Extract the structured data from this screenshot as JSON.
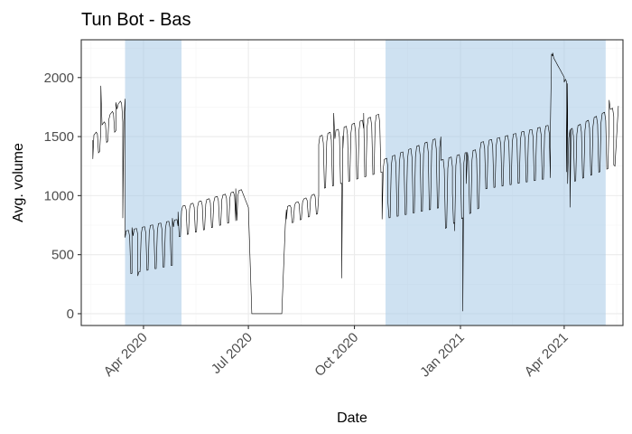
{
  "chart_data": {
    "type": "line",
    "title": "Tun Bot - Bas",
    "xlabel": "Date",
    "ylabel": "Avg. volume",
    "x_axis": {
      "type": "date",
      "range": [
        "2020-02-07",
        "2021-05-22"
      ],
      "ticks": [
        {
          "date": "2020-04-01",
          "label": "Apr 2020"
        },
        {
          "date": "2020-07-01",
          "label": "Jul 2020"
        },
        {
          "date": "2020-10-01",
          "label": "Oct 2020"
        },
        {
          "date": "2021-01-01",
          "label": "Jan 2021"
        },
        {
          "date": "2021-04-01",
          "label": "Apr 2021"
        }
      ]
    },
    "y_axis": {
      "range": [
        -100,
        2320
      ],
      "ticks": [
        0,
        500,
        1000,
        1500,
        2000
      ]
    },
    "grid": true,
    "legend": "none",
    "colors": {
      "line": "#000000",
      "band": "#a6c8e6",
      "grid": "#ebebeb",
      "border": "#333333"
    },
    "shaded_periods": [
      {
        "start": "2020-03-16",
        "end": "2020-05-04"
      },
      {
        "start": "2020-10-28",
        "end": "2021-05-07"
      }
    ],
    "segments": [
      {
        "start": "2020-02-17",
        "end": "2020-03-16",
        "weekday_high": [
          1500,
          1850
        ],
        "weekend_low": [
          1300,
          1650
        ]
      },
      {
        "start": "2020-03-16",
        "end": "2020-05-01",
        "weekday_high": [
          700,
          800
        ],
        "weekend_low": [
          330,
          420
        ]
      },
      {
        "start": "2020-05-01",
        "end": "2020-06-25",
        "weekday_high": [
          900,
          1050
        ],
        "weekend_low": [
          650,
          800
        ]
      },
      {
        "start": "2020-07-05",
        "end": "2020-07-30",
        "constant": 0
      },
      {
        "start": "2020-08-02",
        "end": "2020-08-31",
        "weekday_high": [
          900,
          1030
        ],
        "weekend_low": [
          750,
          850
        ]
      },
      {
        "start": "2020-08-31",
        "end": "2020-10-25",
        "weekday_high": [
          1500,
          1700
        ],
        "weekend_low": [
          1050,
          1200
        ]
      },
      {
        "start": "2020-10-25",
        "end": "2020-12-15",
        "weekday_high": [
          1300,
          1500
        ],
        "weekend_low": [
          800,
          900
        ]
      },
      {
        "start": "2020-12-15",
        "end": "2021-01-18",
        "weekday_high": [
          1300,
          1400
        ],
        "weekend_low": [
          700,
          900
        ]
      },
      {
        "start": "2021-01-18",
        "end": "2021-03-20",
        "weekday_high": [
          1450,
          1600
        ],
        "weekend_low": [
          1050,
          1150
        ]
      },
      {
        "start": "2021-03-21",
        "end": "2021-04-04",
        "weekday_high": [
          2200,
          1950
        ],
        "weekend_low": [
          2200,
          1950
        ]
      },
      {
        "start": "2021-04-04",
        "end": "2021-05-15",
        "weekday_high": [
          1550,
          1750
        ],
        "weekend_low": [
          1100,
          1250
        ]
      }
    ],
    "points": [
      {
        "x": "2020-02-17",
        "y": 1310
      },
      {
        "x": "2020-02-24",
        "y": 1930
      },
      {
        "x": "2020-03-08",
        "y": 1790
      },
      {
        "x": "2020-03-14",
        "y": 810
      },
      {
        "x": "2020-03-22",
        "y": 730
      },
      {
        "x": "2020-03-27",
        "y": 320
      },
      {
        "x": "2020-04-26",
        "y": 810
      },
      {
        "x": "2020-06-20",
        "y": 1060
      },
      {
        "x": "2020-07-01",
        "y": 900
      },
      {
        "x": "2020-07-04",
        "y": 0
      },
      {
        "x": "2020-07-30",
        "y": 0
      },
      {
        "x": "2020-08-03",
        "y": 800
      },
      {
        "x": "2020-09-13",
        "y": 1700
      },
      {
        "x": "2020-09-20",
        "y": 300
      },
      {
        "x": "2020-09-21",
        "y": 1400
      },
      {
        "x": "2020-10-09",
        "y": 1700
      },
      {
        "x": "2020-10-30",
        "y": 950
      },
      {
        "x": "2020-12-25",
        "y": 1020
      },
      {
        "x": "2020-12-27",
        "y": 700
      },
      {
        "x": "2021-01-03",
        "y": 20
      },
      {
        "x": "2021-01-06",
        "y": 1100
      },
      {
        "x": "2021-03-20",
        "y": 1570
      },
      {
        "x": "2021-03-22",
        "y": 2210
      },
      {
        "x": "2021-04-01",
        "y": 1960
      },
      {
        "x": "2021-04-03",
        "y": 1200
      },
      {
        "x": "2021-04-06",
        "y": 900
      },
      {
        "x": "2021-05-10",
        "y": 1810
      },
      {
        "x": "2021-05-14",
        "y": 1260
      },
      {
        "x": "2021-05-18",
        "y": 1760
      }
    ]
  }
}
